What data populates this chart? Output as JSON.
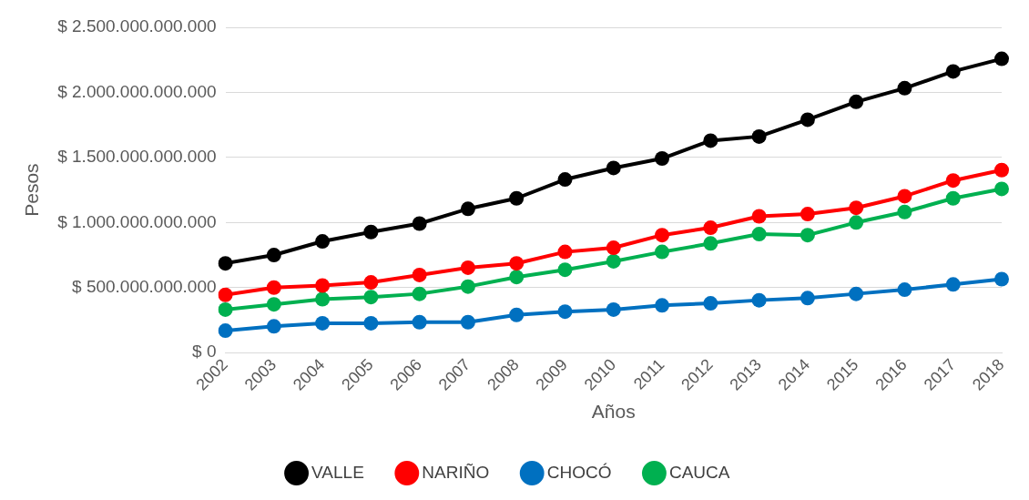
{
  "chart_data": {
    "type": "line",
    "xlabel": "Años",
    "ylabel": "Pesos",
    "categories": [
      "2002",
      "2003",
      "2004",
      "2005",
      "2006",
      "2007",
      "2008",
      "2009",
      "2010",
      "2011",
      "2012",
      "2013",
      "2014",
      "2015",
      "2016",
      "2017",
      "2018"
    ],
    "series": [
      {
        "name": "VALLE",
        "color": "#000000",
        "values": [
          686000000000,
          750000000000,
          855000000000,
          927000000000,
          992000000000,
          1105000000000,
          1186000000000,
          1331000000000,
          1419000000000,
          1492000000000,
          1629000000000,
          1661000000000,
          1790000000000,
          1927000000000,
          2032000000000,
          2161000000000,
          2258000000000
        ]
      },
      {
        "name": "NARIÑO",
        "color": "#ff0000",
        "values": [
          444000000000,
          500000000000,
          516000000000,
          540000000000,
          597000000000,
          653000000000,
          686000000000,
          774000000000,
          806000000000,
          903000000000,
          960000000000,
          1048000000000,
          1065000000000,
          1113000000000,
          1202000000000,
          1323000000000,
          1403000000000
        ]
      },
      {
        "name": "CHOCÓ",
        "color": "#0070c0",
        "values": [
          169000000000,
          202000000000,
          226000000000,
          226000000000,
          234000000000,
          234000000000,
          290000000000,
          315000000000,
          331000000000,
          363000000000,
          379000000000,
          403000000000,
          419000000000,
          452000000000,
          484000000000,
          524000000000,
          565000000000
        ]
      },
      {
        "name": "CAUCA",
        "color": "#00b050",
        "values": [
          331000000000,
          371000000000,
          411000000000,
          427000000000,
          452000000000,
          508000000000,
          581000000000,
          637000000000,
          702000000000,
          774000000000,
          839000000000,
          911000000000,
          903000000000,
          1000000000000,
          1081000000000,
          1186000000000,
          1258000000000
        ]
      }
    ],
    "ylim": [
      0,
      2500000000000
    ],
    "yticks": [
      {
        "value": 0,
        "label": "$ 0"
      },
      {
        "value": 500000000000,
        "label": "$ 500.000.000.000"
      },
      {
        "value": 1000000000000,
        "label": "$ 1.000.000.000.000"
      },
      {
        "value": 1500000000000,
        "label": "$ 1.500.000.000.000"
      },
      {
        "value": 2000000000000,
        "label": "$ 2.000.000.000.000"
      },
      {
        "value": 2500000000000,
        "label": "$ 2.500.000.000.000"
      }
    ],
    "grid": "y",
    "legend": "bottom",
    "marker": "circle",
    "line_style": "solid"
  }
}
